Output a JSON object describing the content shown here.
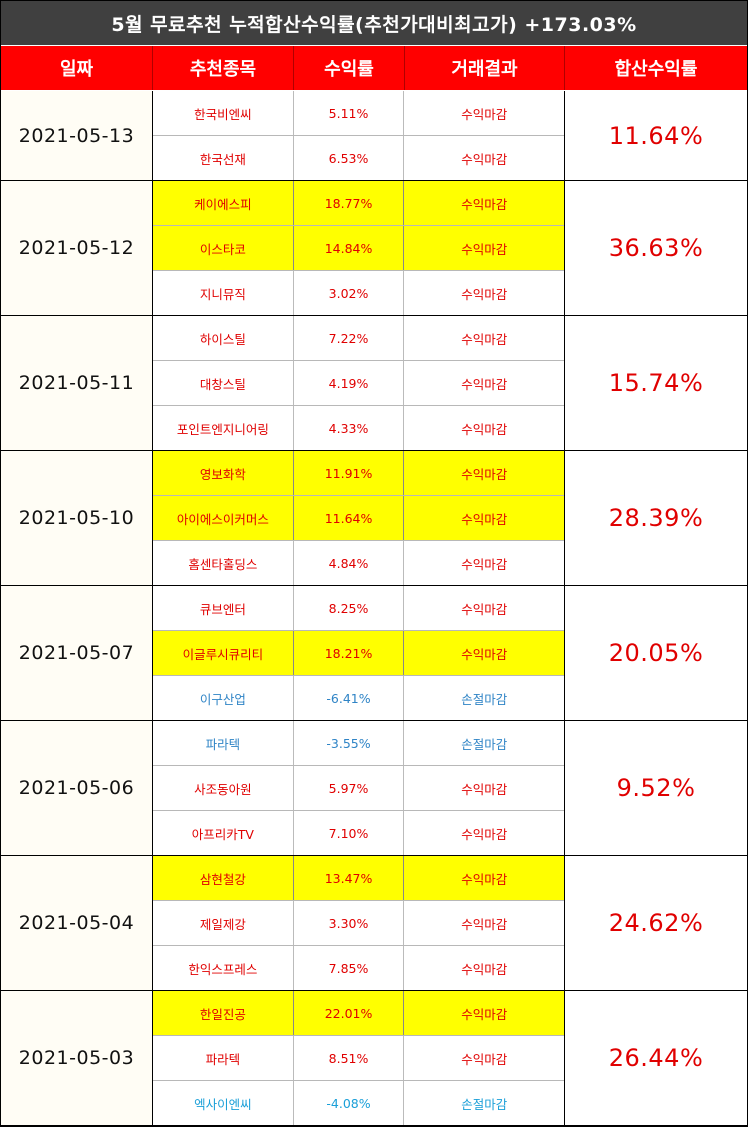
{
  "title": "5월 무료추천 누적합산수익률(추천가대비최고가) +173.03%",
  "headers": [
    "일짜",
    "추천종목",
    "수익률",
    "거래결과",
    "합산수익률"
  ],
  "groups": [
    {
      "date": "2021-05-13",
      "total": "11.64%",
      "rows": [
        {
          "name": "한국비엔씨",
          "ret": "5.11%",
          "result": "수익마감",
          "highlight": false,
          "loss": false
        },
        {
          "name": "한국선재",
          "ret": "6.53%",
          "result": "수익마감",
          "highlight": false,
          "loss": false
        }
      ]
    },
    {
      "date": "2021-05-12",
      "total": "36.63%",
      "rows": [
        {
          "name": "케이에스피",
          "ret": "18.77%",
          "result": "수익마감",
          "highlight": true,
          "loss": false
        },
        {
          "name": "이스타코",
          "ret": "14.84%",
          "result": "수익마감",
          "highlight": true,
          "loss": false
        },
        {
          "name": "지니뮤직",
          "ret": "3.02%",
          "result": "수익마감",
          "highlight": false,
          "loss": false
        }
      ]
    },
    {
      "date": "2021-05-11",
      "total": "15.74%",
      "rows": [
        {
          "name": "하이스틸",
          "ret": "7.22%",
          "result": "수익마감",
          "highlight": false,
          "loss": false
        },
        {
          "name": "대창스틸",
          "ret": "4.19%",
          "result": "수익마감",
          "highlight": false,
          "loss": false
        },
        {
          "name": "포인트엔지니어링",
          "ret": "4.33%",
          "result": "수익마감",
          "highlight": false,
          "loss": false
        }
      ]
    },
    {
      "date": "2021-05-10",
      "total": "28.39%",
      "rows": [
        {
          "name": "영보화학",
          "ret": "11.91%",
          "result": "수익마감",
          "highlight": true,
          "loss": false
        },
        {
          "name": "아이에스이커머스",
          "ret": "11.64%",
          "result": "수익마감",
          "highlight": true,
          "loss": false
        },
        {
          "name": "홈센타홀딩스",
          "ret": "4.84%",
          "result": "수익마감",
          "highlight": false,
          "loss": false
        }
      ]
    },
    {
      "date": "2021-05-07",
      "total": "20.05%",
      "rows": [
        {
          "name": "큐브엔터",
          "ret": "8.25%",
          "result": "수익마감",
          "highlight": false,
          "loss": false
        },
        {
          "name": "이글루시큐리티",
          "ret": "18.21%",
          "result": "수익마감",
          "highlight": true,
          "loss": false
        },
        {
          "name": "이구산업",
          "ret": "-6.41%",
          "result": "손절마감",
          "highlight": false,
          "loss": true
        }
      ]
    },
    {
      "date": "2021-05-06",
      "total": "9.52%",
      "rows": [
        {
          "name": "파라텍",
          "ret": "-3.55%",
          "result": "손절마감",
          "highlight": false,
          "loss": true
        },
        {
          "name": "사조동아원",
          "ret": "5.97%",
          "result": "수익마감",
          "highlight": false,
          "loss": false
        },
        {
          "name": "아프리카TV",
          "ret": "7.10%",
          "result": "수익마감",
          "highlight": false,
          "loss": false
        }
      ]
    },
    {
      "date": "2021-05-04",
      "total": "24.62%",
      "rows": [
        {
          "name": "삼현철강",
          "ret": "13.47%",
          "result": "수익마감",
          "highlight": true,
          "loss": false
        },
        {
          "name": "제일제강",
          "ret": "3.30%",
          "result": "수익마감",
          "highlight": false,
          "loss": false
        },
        {
          "name": "한익스프레스",
          "ret": "7.85%",
          "result": "수익마감",
          "highlight": false,
          "loss": false
        }
      ]
    },
    {
      "date": "2021-05-03",
      "total": "26.44%",
      "rows": [
        {
          "name": "한일진공",
          "ret": "22.01%",
          "result": "수익마감",
          "highlight": true,
          "loss": false
        },
        {
          "name": "파라텍",
          "ret": "8.51%",
          "result": "수익마감",
          "highlight": false,
          "loss": false
        },
        {
          "name": "엑사이엔씨",
          "ret": "-4.08%",
          "result": "손절마감",
          "highlight": false,
          "loss": true
        }
      ]
    }
  ],
  "colors": {
    "title_bg": "#404040",
    "header_bg": "#ff0000",
    "highlight": "#ffff00",
    "gain": "#e00000",
    "loss": "#2f84c6"
  }
}
